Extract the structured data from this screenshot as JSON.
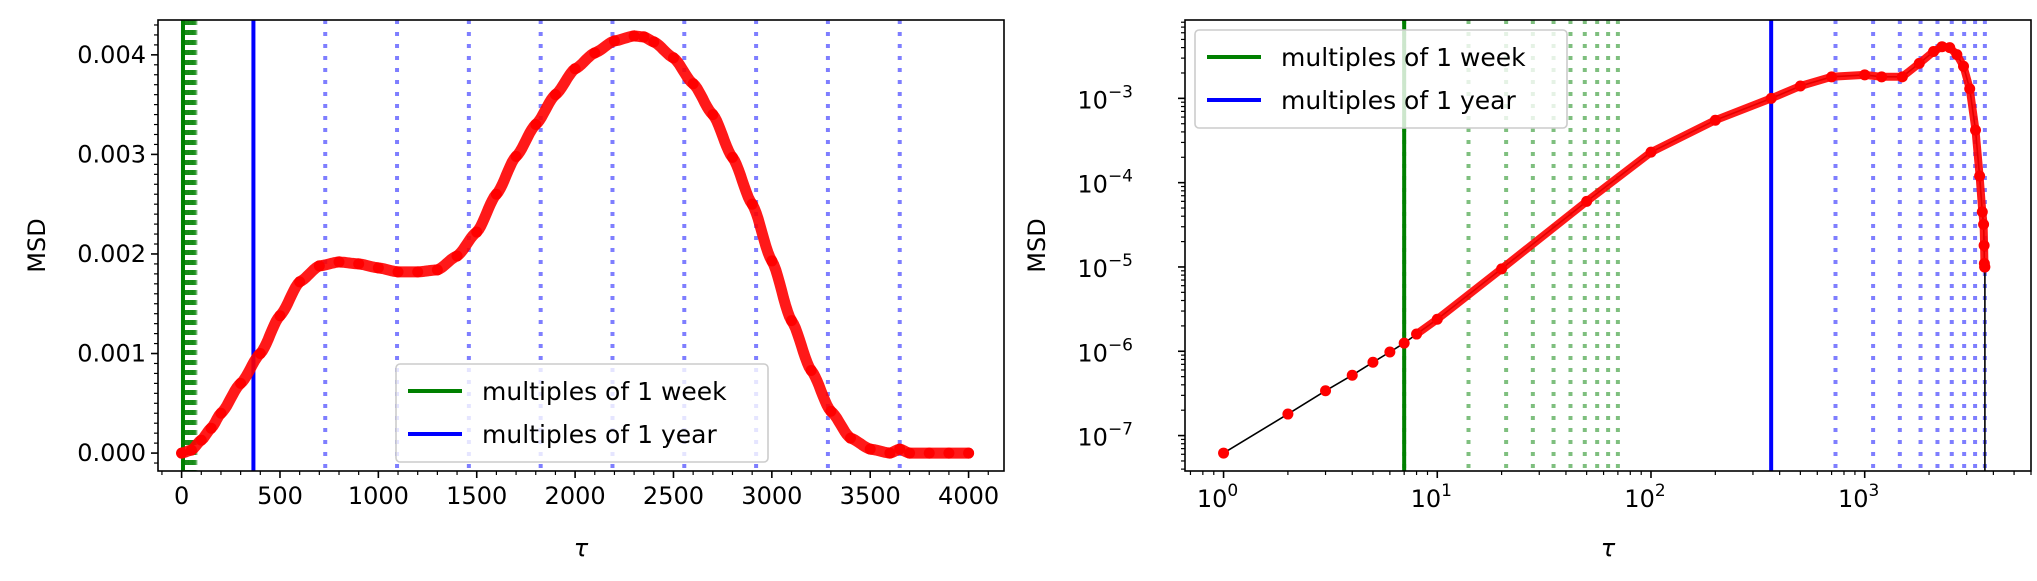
{
  "chart_data": [
    {
      "type": "scatter",
      "scale": "linear",
      "xlabel": "τ",
      "ylabel": "MSD",
      "xlim": [
        -120,
        4180
      ],
      "ylim": [
        -0.00018,
        0.00435
      ],
      "xticks": [
        0,
        500,
        1000,
        1500,
        2000,
        2500,
        3000,
        3500,
        4000
      ],
      "xtick_labels": [
        "0",
        "500",
        "1000",
        "1500",
        "2000",
        "2500",
        "3000",
        "3500",
        "4000"
      ],
      "yticks": [
        0,
        0.001,
        0.002,
        0.003,
        0.004
      ],
      "ytick_labels": [
        "0.000",
        "0.001",
        "0.002",
        "0.003",
        "0.004"
      ],
      "grid": false,
      "legend_position": "lower-right",
      "legend": [
        {
          "label": "multiples of 1 week",
          "color": "#008000"
        },
        {
          "label": "multiples of 1 year",
          "color": "#0000ff"
        }
      ],
      "vlines": [
        {
          "x": 7,
          "color": "#008000",
          "style": "solid"
        },
        {
          "x": 365,
          "color": "#0000ff",
          "style": "solid"
        },
        {
          "x_multiples_of": 7,
          "count": 10,
          "color": "#008000",
          "style": "dotted"
        },
        {
          "x_multiples_of": 365,
          "from": 2,
          "to": 10,
          "color": "#0000ff",
          "style": "dotted"
        }
      ],
      "series": [
        {
          "color": "#ff0000",
          "marker": "circle",
          "x": [
            0,
            50,
            100,
            150,
            200,
            300,
            400,
            500,
            600,
            700,
            800,
            900,
            1000,
            1100,
            1200,
            1300,
            1400,
            1500,
            1600,
            1700,
            1800,
            1900,
            2000,
            2100,
            2200,
            2300,
            2350,
            2400,
            2500,
            2600,
            2700,
            2800,
            2900,
            3000,
            3100,
            3200,
            3300,
            3400,
            3500,
            3600,
            3650,
            3700,
            3800,
            3900,
            4000
          ],
          "y": [
            0.0,
            3e-05,
            0.00013,
            0.00025,
            0.0004,
            0.0007,
            0.001,
            0.00138,
            0.00172,
            0.00188,
            0.00192,
            0.0019,
            0.00186,
            0.00182,
            0.00182,
            0.00184,
            0.00198,
            0.00222,
            0.0026,
            0.00298,
            0.0033,
            0.0036,
            0.00386,
            0.00402,
            0.00414,
            0.00419,
            0.00418,
            0.00413,
            0.00397,
            0.00371,
            0.0034,
            0.00297,
            0.0025,
            0.00193,
            0.00133,
            0.00083,
            0.00042,
            0.00015,
            4e-05,
            0.0,
            4e-05,
            0.0,
            0.0,
            0.0,
            0.0
          ]
        }
      ]
    },
    {
      "type": "scatter",
      "scale": "log-log",
      "xlabel": "τ",
      "ylabel": "MSD",
      "xlim": [
        0.66,
        6000
      ],
      "ylim": [
        3.8e-08,
        0.0085
      ],
      "xticks": [
        1,
        10,
        100,
        1000
      ],
      "xtick_labels": [
        {
          "base": "10",
          "exp": "0"
        },
        {
          "base": "10",
          "exp": "1"
        },
        {
          "base": "10",
          "exp": "2"
        },
        {
          "base": "10",
          "exp": "3"
        }
      ],
      "yticks": [
        1e-07,
        1e-06,
        1e-05,
        0.0001,
        0.001
      ],
      "ytick_labels": [
        {
          "base": "10",
          "exp": "−7"
        },
        {
          "base": "10",
          "exp": "−6"
        },
        {
          "base": "10",
          "exp": "−5"
        },
        {
          "base": "10",
          "exp": "−4"
        },
        {
          "base": "10",
          "exp": "−3"
        }
      ],
      "grid": false,
      "legend_position": "upper-left",
      "legend": [
        {
          "label": "multiples of 1 week",
          "color": "#008000"
        },
        {
          "label": "multiples of 1 year",
          "color": "#0000ff"
        }
      ],
      "vlines": [
        {
          "x": 7,
          "color": "#008000",
          "style": "solid"
        },
        {
          "x": 365,
          "color": "#0000ff",
          "style": "solid"
        },
        {
          "x_multiples_of": 7,
          "count": 10,
          "color": "#008000",
          "style": "dotted"
        },
        {
          "x_multiples_of": 365,
          "from": 2,
          "to": 10,
          "color": "#0000ff",
          "style": "dotted"
        }
      ],
      "series": [
        {
          "color": "#ff0000",
          "marker": "circle",
          "line_color": "#000000",
          "x": [
            1,
            2,
            3,
            4,
            5,
            6,
            7,
            8,
            10,
            20,
            50,
            100,
            200,
            365,
            500,
            700,
            1000,
            1200,
            1500,
            1800,
            2100,
            2300,
            2500,
            2700,
            2900,
            3100,
            3300,
            3450,
            3550,
            3600,
            3620,
            3630,
            3640,
            3650
          ],
          "y": [
            6.2e-08,
            1.8e-07,
            3.4e-07,
            5.2e-07,
            7.4e-07,
            9.8e-07,
            1.25e-06,
            1.6e-06,
            2.4e-06,
            9.5e-06,
            6e-05,
            0.00023,
            0.00055,
            0.001,
            0.0014,
            0.0018,
            0.0019,
            0.0018,
            0.0018,
            0.0026,
            0.0036,
            0.0041,
            0.004,
            0.0033,
            0.0024,
            0.0013,
            0.00042,
            0.00012,
            4.5e-05,
            3.2e-05,
            1.8e-05,
            1.1e-05,
            1e-05,
            1e-05
          ]
        }
      ]
    }
  ]
}
